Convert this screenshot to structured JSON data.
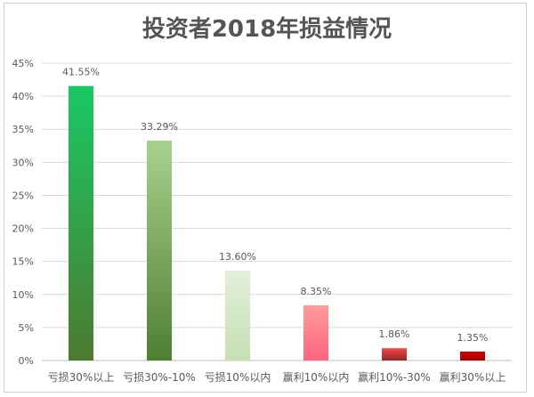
{
  "chart_data": {
    "type": "bar",
    "title": "投资者2018年损益情况",
    "xlabel": "",
    "ylabel": "",
    "ylim": [
      0,
      45
    ],
    "yticks": [
      "0%",
      "5%",
      "10%",
      "15%",
      "20%",
      "25%",
      "30%",
      "35%",
      "40%",
      "45%"
    ],
    "ytick_values": [
      0,
      5,
      10,
      15,
      20,
      25,
      30,
      35,
      40,
      45
    ],
    "grid": true,
    "categories": [
      "亏损30%以上",
      "亏损30%-10%",
      "亏损10%以内",
      "赢利10%以内",
      "赢利10%-30%",
      "赢利30%以上"
    ],
    "values": [
      41.55,
      33.29,
      13.6,
      8.35,
      1.86,
      1.35
    ],
    "data_labels": [
      "41.55%",
      "33.29%",
      "13.60%",
      "8.35%",
      "1.86%",
      "1.35%"
    ],
    "colors": [
      [
        "#19c965",
        "#4d7a2f"
      ],
      [
        "#a9d18e",
        "#4e7f31"
      ],
      [
        "#e2efda",
        "#c5e0b3"
      ],
      [
        "#ff9a9a",
        "#ff6580"
      ],
      [
        "#ff4444",
        "#8a2a2a"
      ],
      [
        "#d40000",
        "#a80000"
      ]
    ]
  }
}
